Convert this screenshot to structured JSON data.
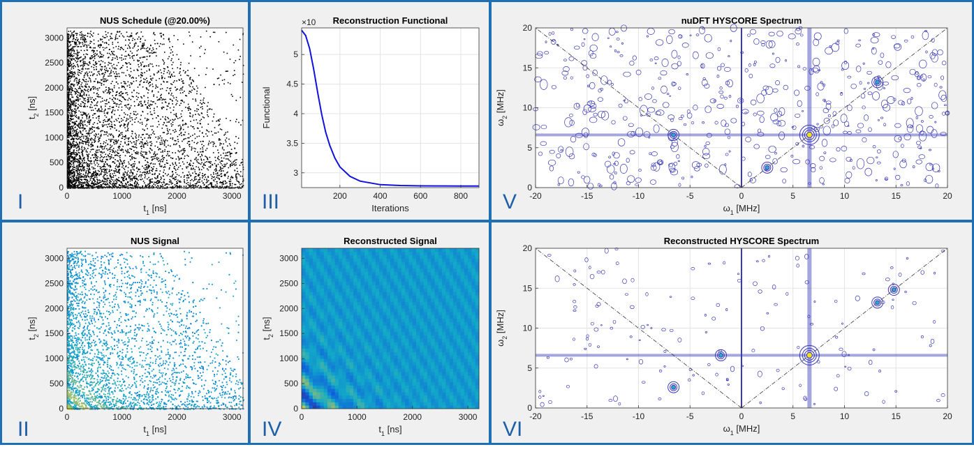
{
  "panels": {
    "I": {
      "label": "I"
    },
    "II": {
      "label": "II"
    },
    "III": {
      "label": "III"
    },
    "IV": {
      "label": "IV"
    },
    "V": {
      "label": "V"
    },
    "VI": {
      "label": "VI"
    }
  },
  "chart_data": [
    {
      "id": "I",
      "type": "scatter",
      "title": "NUS Schedule (@20.00%)",
      "xlabel": "t",
      "xlabel_sub": "1",
      "xlabel_unit": " [ns]",
      "ylabel": "t",
      "ylabel_sub": "2",
      "ylabel_unit": " [ns]",
      "xlim": [
        0,
        3200
      ],
      "ylim": [
        0,
        3200
      ],
      "xticks": [
        0,
        1000,
        2000,
        3000
      ],
      "yticks": [
        0,
        500,
        1000,
        1500,
        2000,
        2500,
        3000
      ],
      "grid": false,
      "points_note": "random non-uniform sampling points, density decreasing with t1 and t2",
      "point_color": "#000000"
    },
    {
      "id": "II",
      "type": "scatter",
      "title": "NUS Signal",
      "xlabel": "t",
      "xlabel_sub": "1",
      "xlabel_unit": " [ns]",
      "ylabel": "t",
      "ylabel_sub": "2",
      "ylabel_unit": " [ns]",
      "xlim": [
        0,
        3200
      ],
      "ylim": [
        0,
        3200
      ],
      "xticks": [
        0,
        1000,
        2000,
        3000
      ],
      "yticks": [
        0,
        500,
        1000,
        1500,
        2000,
        2500,
        3000
      ],
      "grid": false,
      "colormap": "parula"
    },
    {
      "id": "III",
      "type": "line",
      "title": "Reconstruction Functional",
      "xlabel": "Iterations",
      "ylabel": "Functional",
      "exponent_label": "×10",
      "xlim": [
        10,
        890
      ],
      "ylim": [
        2.75,
        5.45
      ],
      "xticks": [
        200,
        400,
        600,
        800
      ],
      "yticks": [
        3,
        3.5,
        4,
        4.5,
        5
      ],
      "grid": true,
      "line_color": "#1010e0",
      "x": [
        10,
        30,
        50,
        70,
        90,
        110,
        130,
        150,
        175,
        200,
        250,
        300,
        400,
        500,
        600,
        700,
        800,
        890
      ],
      "y": [
        5.41,
        5.32,
        5.1,
        4.75,
        4.35,
        3.98,
        3.68,
        3.46,
        3.25,
        3.1,
        2.94,
        2.86,
        2.8,
        2.785,
        2.78,
        2.778,
        2.777,
        2.777
      ]
    },
    {
      "id": "IV",
      "type": "heatmap",
      "title": "Reconstructed Signal",
      "xlabel": "t",
      "xlabel_sub": "1",
      "xlabel_unit": " [ns]",
      "ylabel": "t",
      "ylabel_sub": "2",
      "ylabel_unit": " [ns]",
      "xlim": [
        0,
        3200
      ],
      "ylim": [
        0,
        3200
      ],
      "xticks": [
        0,
        1000,
        2000,
        3000
      ],
      "yticks": [
        0,
        500,
        1000,
        1500,
        2000,
        2500,
        3000
      ],
      "grid": false,
      "colormap": "parula"
    },
    {
      "id": "V",
      "type": "heatmap",
      "title": "nuDFT HYSCORE Spectrum",
      "xlabel": "ω",
      "xlabel_sub": "1",
      "xlabel_unit": " [MHz]",
      "ylabel": "ω",
      "ylabel_sub": "2",
      "ylabel_unit": " [MHz]",
      "xlim": [
        -20,
        20
      ],
      "ylim": [
        0,
        20
      ],
      "xticks": [
        -20,
        -15,
        -10,
        -5,
        0,
        5,
        10,
        15,
        20
      ],
      "yticks": [
        0,
        5,
        10,
        15,
        20
      ],
      "grid": true,
      "contour_color": "#3a3ab8",
      "peaks": [
        {
          "x": 6.6,
          "y": 6.6
        },
        {
          "x": -6.6,
          "y": 6.6
        },
        {
          "x": 2.5,
          "y": 2.5
        },
        {
          "x": 13.2,
          "y": 13.2
        }
      ]
    },
    {
      "id": "VI",
      "type": "heatmap",
      "title": "Reconstructed HYSCORE Spectrum",
      "xlabel": "ω",
      "xlabel_sub": "1",
      "xlabel_unit": " [MHz]",
      "ylabel": "ω",
      "ylabel_sub": "2",
      "ylabel_unit": " [MHz]",
      "xlim": [
        -20,
        20
      ],
      "ylim": [
        0,
        20
      ],
      "xticks": [
        -20,
        -15,
        -10,
        -5,
        0,
        5,
        10,
        15,
        20
      ],
      "yticks": [
        0,
        5,
        10,
        15,
        20
      ],
      "grid": true,
      "contour_color": "#3a3ab8",
      "peaks": [
        {
          "x": 6.6,
          "y": 6.6
        },
        {
          "x": -6.6,
          "y": 2.6
        },
        {
          "x": -2.0,
          "y": 6.6
        },
        {
          "x": 14.8,
          "y": 14.8
        },
        {
          "x": 13.2,
          "y": 13.2
        }
      ]
    }
  ]
}
